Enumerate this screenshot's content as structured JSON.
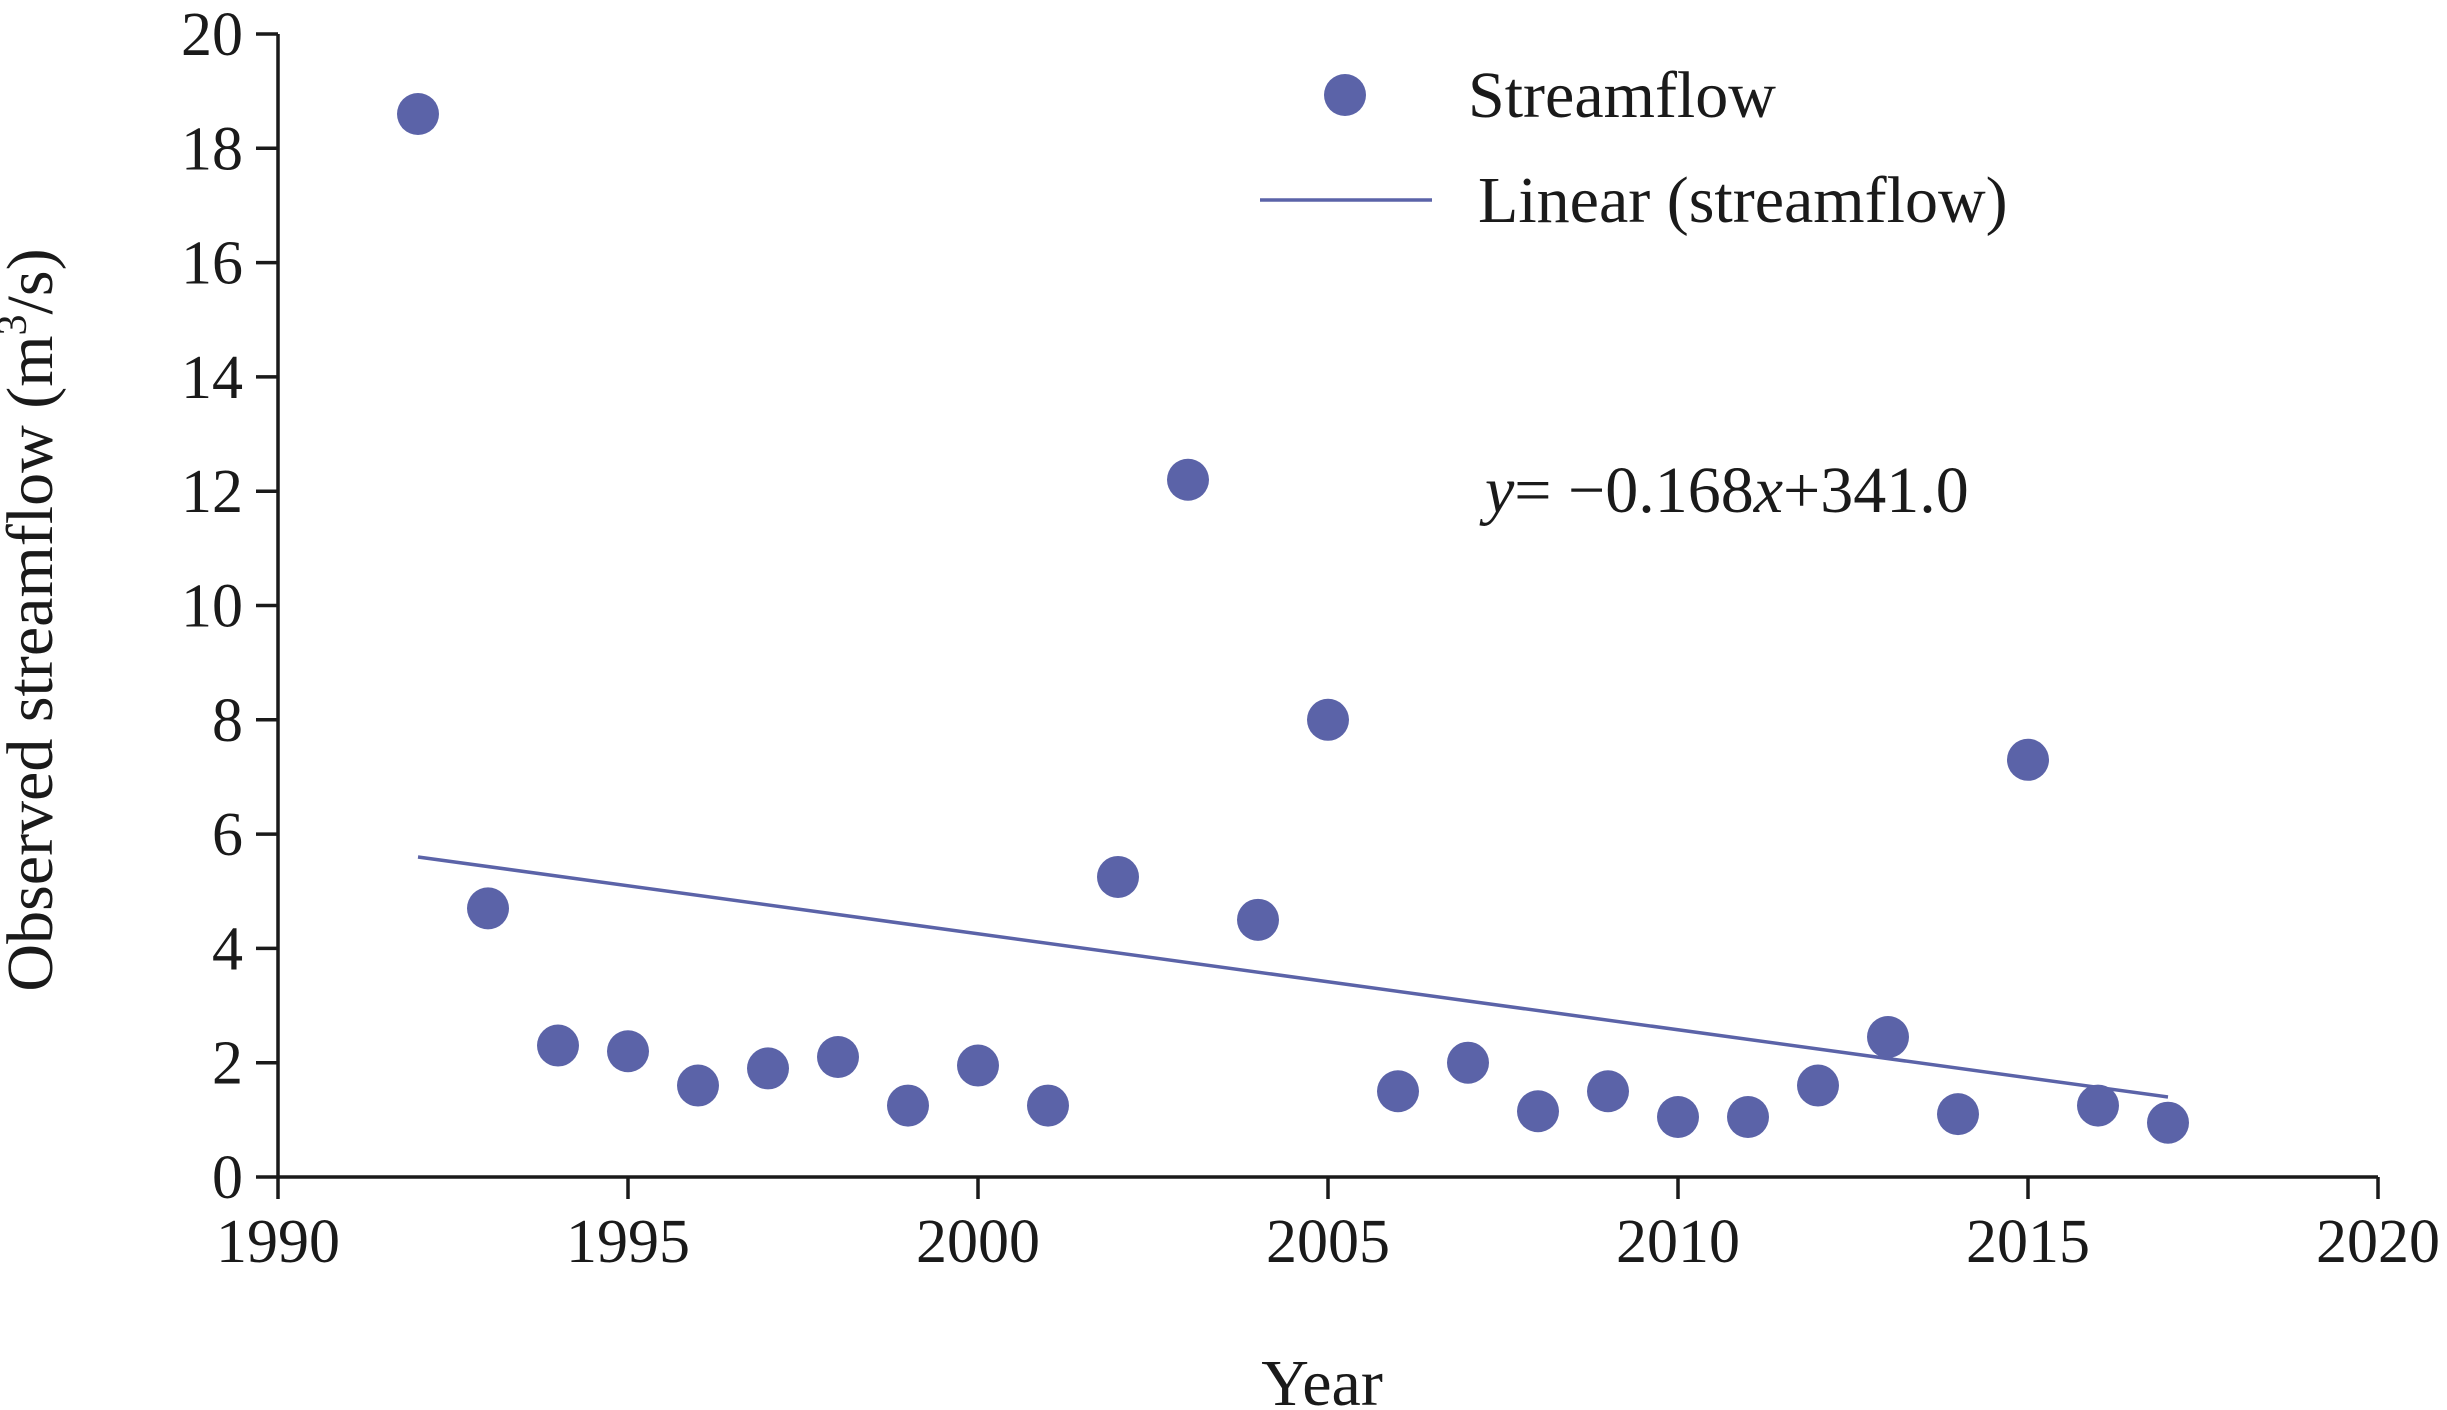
{
  "chart_data": {
    "type": "scatter",
    "xlabel": "Year",
    "ylabel": {
      "prefix": "Observed streamflow (m",
      "superscript": "3",
      "suffix": "/s)"
    },
    "xlim": [
      1990,
      2020
    ],
    "ylim": [
      0,
      20
    ],
    "x_ticks": [
      1990,
      1995,
      2000,
      2005,
      2010,
      2015,
      2020
    ],
    "y_ticks": [
      0,
      2,
      4,
      6,
      8,
      10,
      12,
      14,
      16,
      18,
      20
    ],
    "grid": false,
    "legend_position": "top-right",
    "series": [
      {
        "name": "Streamflow",
        "kind": "scatter",
        "color": "#5b63a8",
        "x": [
          1992,
          1993,
          1994,
          1995,
          1996,
          1997,
          1998,
          1999,
          2000,
          2001,
          2002,
          2003,
          2004,
          2005,
          2006,
          2007,
          2008,
          2009,
          2010,
          2011,
          2012,
          2013,
          2014,
          2015,
          2016,
          2017
        ],
        "y": [
          18.6,
          4.7,
          2.3,
          2.2,
          1.6,
          1.9,
          2.1,
          1.25,
          1.95,
          1.25,
          5.25,
          12.2,
          4.5,
          8.0,
          1.5,
          2.0,
          1.15,
          1.5,
          1.05,
          1.05,
          1.6,
          2.45,
          1.1,
          7.3,
          1.25,
          0.95
        ]
      },
      {
        "name": "Linear (streamflow)",
        "kind": "line",
        "color": "#5b63a8",
        "x": [
          1992,
          2017
        ],
        "y": [
          5.6,
          1.4
        ]
      }
    ],
    "annotation": {
      "y_var": "y",
      "equation": "= −0.168",
      "x_var": "x",
      "constant": "+341.0"
    }
  }
}
